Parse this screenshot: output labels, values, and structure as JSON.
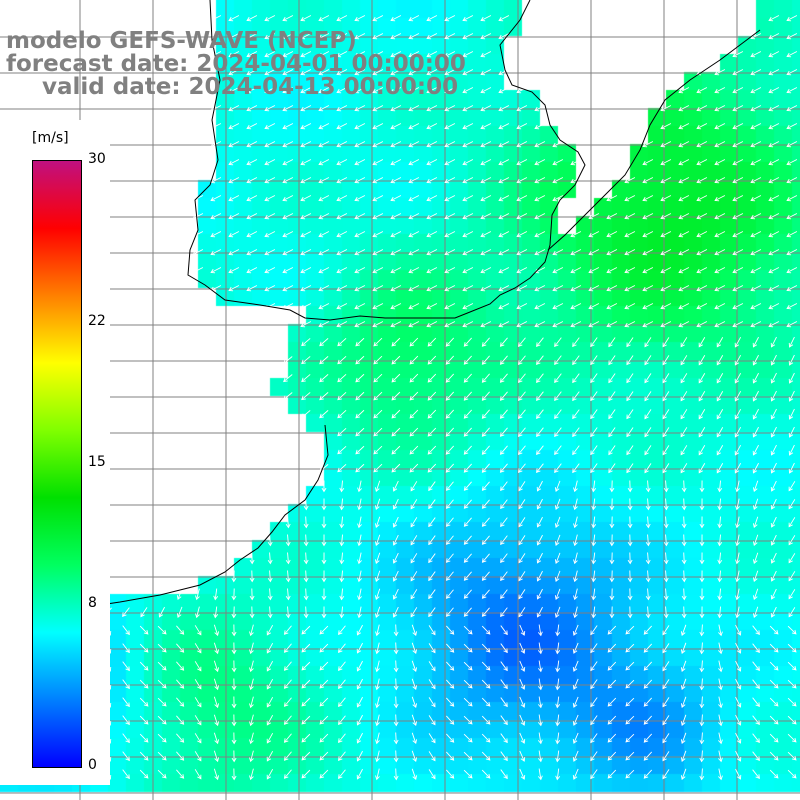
{
  "title": {
    "model": "modelo GEFS-WAVE (NCEP)",
    "forecast": "forecast date: 2024-04-01 00:00:00",
    "valid": "valid date: 2024-04-13 00:00:00"
  },
  "colorbar": {
    "unit": "[m/s]",
    "min": 0,
    "max": 30,
    "ticks": [
      "30",
      "22",
      "15",
      "8",
      "0"
    ],
    "tick_values": [
      30,
      22,
      15,
      8,
      0
    ],
    "gradient_colors": [
      "#0000ff",
      "#0080ff",
      "#00ffff",
      "#00ff60",
      "#00e000",
      "#80ff00",
      "#ffff00",
      "#ff8000",
      "#ff0000",
      "#c01080"
    ]
  },
  "map": {
    "land_color": "#ffffff",
    "coast_color": "#000000",
    "grid_color": "#808080",
    "arrow_color": "#ffffff",
    "variable": "wind speed and direction"
  }
}
